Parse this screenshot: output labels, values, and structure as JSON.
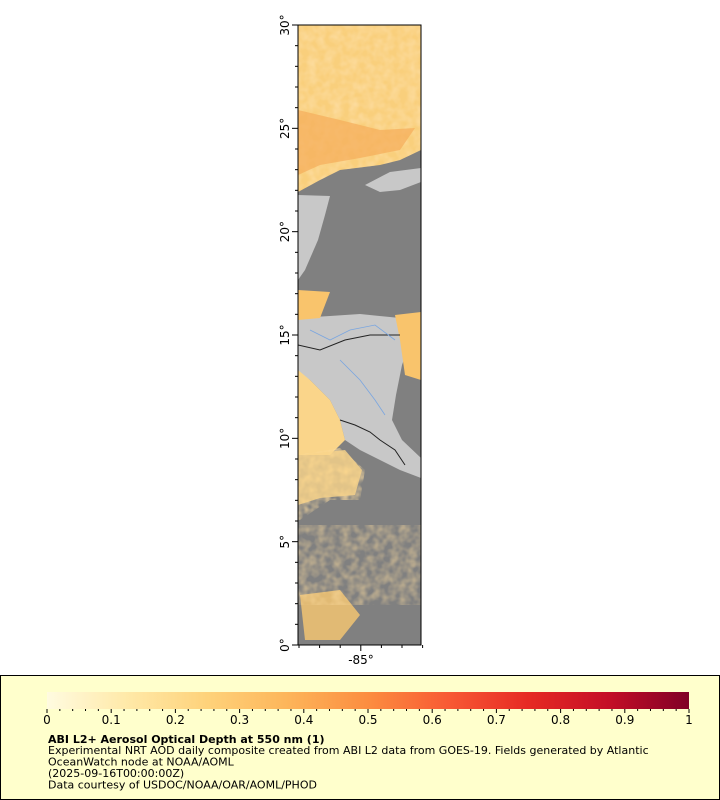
{
  "map": {
    "lat_labels": [
      "0°",
      "5°",
      "10°",
      "15°",
      "20°",
      "25°",
      "30°"
    ],
    "lon_labels": [
      "-85°"
    ]
  },
  "colorbar": {
    "ticks": [
      0,
      0.1,
      0.2,
      0.3,
      0.4,
      0.5,
      0.6,
      0.7,
      0.8,
      0.9,
      1
    ],
    "colors": [
      "#fffbe0",
      "#ffe9a8",
      "#fed27a",
      "#fdb55a",
      "#fc8d40",
      "#f85a34",
      "#e62a24",
      "#c40e26",
      "#800026"
    ]
  },
  "legend": {
    "title": "ABI L2+ Aerosol Optical Depth at 550 nm (1)",
    "lines": [
      "Experimental NRT AOD daily composite created from ABI L2 data from GOES-19. Fields generated by Atlantic",
      "OceanWatch node at NOAA/AOML",
      "(2025-09-16T00:00:00Z)",
      "Data courtesy of USDOC/NOAA/OAR/AOML/PHOD"
    ]
  }
}
